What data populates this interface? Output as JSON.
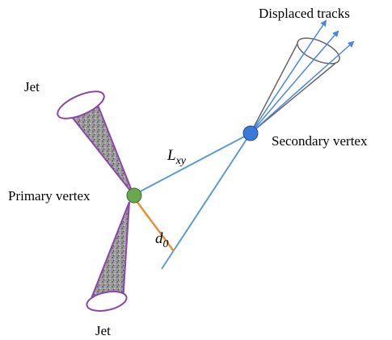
{
  "labels": {
    "jet_top": "Jet",
    "jet_bottom": "Jet",
    "primary_vertex": "Primary vertex",
    "secondary_vertex": "Secondary vertex",
    "displaced_tracks": "Displaced tracks",
    "lxy_main": "L",
    "lxy_sub": "xy",
    "d0_main": "d",
    "d0_sub": "0"
  },
  "colors": {
    "primary_vertex": "#6aa84f",
    "secondary_vertex": "#3c78d8",
    "flight_line": "#5b9bd5",
    "impact_parameter": "#e69138",
    "jet_outline": "#8e44ad",
    "displaced_track_arrow": "#4a86e8",
    "cone_outline": "#666666"
  },
  "icons": {
    "primary_vertex": "filled-circle",
    "secondary_vertex": "filled-circle",
    "jets": "textured-cone"
  }
}
